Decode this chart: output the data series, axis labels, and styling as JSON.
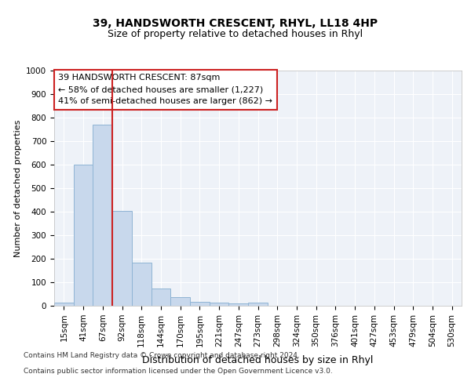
{
  "title1": "39, HANDSWORTH CRESCENT, RHYL, LL18 4HP",
  "title2": "Size of property relative to detached houses in Rhyl",
  "xlabel": "Distribution of detached houses by size in Rhyl",
  "ylabel": "Number of detached properties",
  "categories": [
    "15sqm",
    "41sqm",
    "67sqm",
    "92sqm",
    "118sqm",
    "144sqm",
    "170sqm",
    "195sqm",
    "221sqm",
    "247sqm",
    "273sqm",
    "298sqm",
    "324sqm",
    "350sqm",
    "376sqm",
    "401sqm",
    "427sqm",
    "453sqm",
    "479sqm",
    "504sqm",
    "530sqm"
  ],
  "values": [
    15,
    600,
    770,
    405,
    185,
    75,
    38,
    17,
    12,
    10,
    12,
    0,
    0,
    0,
    0,
    0,
    0,
    0,
    0,
    0,
    0
  ],
  "bar_color": "#c8d8ec",
  "bar_edge_color": "#8fb4d4",
  "vline_x_pos": 2.5,
  "vline_color": "#cc2222",
  "annotation_title": "39 HANDSWORTH CRESCENT: 87sqm",
  "annotation_line1": "← 58% of detached houses are smaller (1,227)",
  "annotation_line2": "41% of semi-detached houses are larger (862) →",
  "annotation_box_facecolor": "#ffffff",
  "annotation_box_edgecolor": "#cc2222",
  "ylim": [
    0,
    1000
  ],
  "yticks": [
    0,
    100,
    200,
    300,
    400,
    500,
    600,
    700,
    800,
    900,
    1000
  ],
  "footer1": "Contains HM Land Registry data © Crown copyright and database right 2024.",
  "footer2": "Contains public sector information licensed under the Open Government Licence v3.0.",
  "bg_color": "#ffffff",
  "plot_bg_color": "#eef2f8",
  "grid_color": "#ffffff",
  "title_fontsize": 10,
  "subtitle_fontsize": 9,
  "ylabel_fontsize": 8,
  "xlabel_fontsize": 9,
  "tick_fontsize": 7.5,
  "ann_fontsize": 8,
  "footer_fontsize": 6.5
}
